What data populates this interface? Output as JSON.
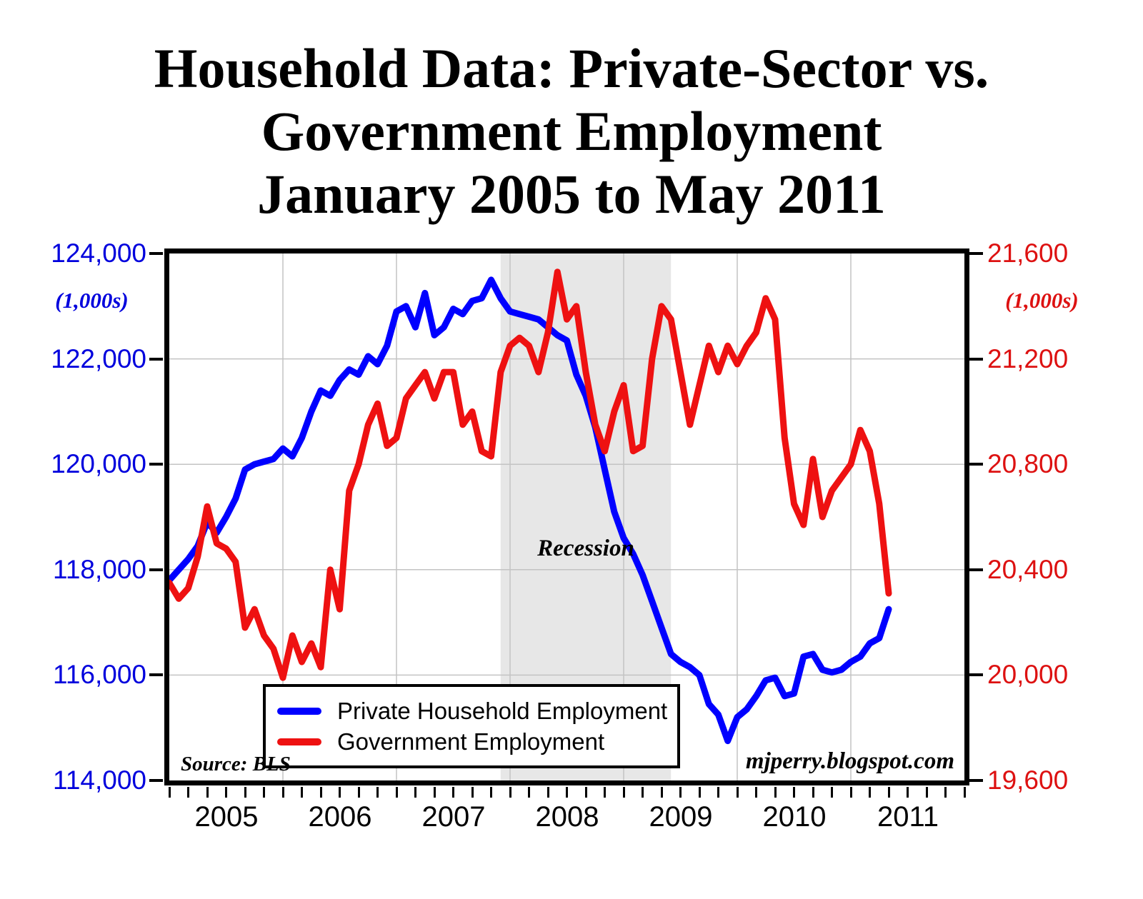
{
  "chart_data": {
    "type": "line",
    "title_lines": [
      "Household Data: Private-Sector vs.",
      "Government Employment",
      "January 2005 to May 2011"
    ],
    "x_unit": "month",
    "x_start": "2005-01",
    "x_end": "2011-05",
    "x_tick_labels": [
      "2005",
      "2006",
      "2007",
      "2008",
      "2009",
      "2010",
      "2011"
    ],
    "left_axis": {
      "unit_label": "(1,000s)",
      "tick_labels": [
        "124,000",
        "122,000",
        "120,000",
        "118,000",
        "116,000",
        "114,000"
      ],
      "ylim": [
        114000,
        124000
      ],
      "color": "#0000dd"
    },
    "right_axis": {
      "unit_label": "(1,000s)",
      "tick_labels": [
        "21,600",
        "21,200",
        "20,800",
        "20,400",
        "20,000",
        "19,600"
      ],
      "ylim": [
        19600,
        21600
      ],
      "color": "#dd1111"
    },
    "grid": true,
    "legend_position": "inside-bottom-left",
    "colors": {
      "recession_fill": "#e7e7e7",
      "grid": "#c3c3c3",
      "frame": "#000000"
    },
    "recession_band": {
      "label": "Recession",
      "start_month_index": 35,
      "end_month_index": 53
    },
    "annotations": {
      "source": "Source: BLS",
      "watermark": "mjperry.blogspot.com"
    },
    "series": [
      {
        "name": "Private Household Employment",
        "axis": "left",
        "color": "#0000ff",
        "values": [
          117800,
          118000,
          118200,
          118450,
          118900,
          118700,
          119000,
          119350,
          119900,
          120000,
          120050,
          120100,
          120300,
          120150,
          120500,
          121000,
          121400,
          121300,
          121600,
          121800,
          121700,
          122050,
          121900,
          122250,
          122900,
          123000,
          122600,
          123250,
          122450,
          122600,
          122950,
          122850,
          123100,
          123150,
          123500,
          123150,
          122900,
          122850,
          122800,
          122750,
          122600,
          122450,
          122350,
          121700,
          121300,
          120700,
          119900,
          119100,
          118600,
          118300,
          117900,
          117400,
          116900,
          116400,
          116250,
          116150,
          116000,
          115450,
          115250,
          114750,
          115200,
          115350,
          115600,
          115900,
          115950,
          115600,
          115650,
          116350,
          116400,
          116100,
          116050,
          116100,
          116250,
          116350,
          116600,
          116700,
          117250
        ]
      },
      {
        "name": "Government Employment",
        "axis": "right",
        "color": "#ee1111",
        "values": [
          20350,
          20290,
          20330,
          20450,
          20640,
          20500,
          20480,
          20430,
          20180,
          20250,
          20150,
          20100,
          19990,
          20150,
          20050,
          20120,
          20030,
          20400,
          20250,
          20700,
          20800,
          20950,
          21030,
          20870,
          20900,
          21050,
          21100,
          21150,
          21050,
          21150,
          21150,
          20950,
          21000,
          20850,
          20830,
          21150,
          21250,
          21280,
          21250,
          21150,
          21300,
          21530,
          21350,
          21400,
          21150,
          20950,
          20850,
          21000,
          21100,
          20850,
          20870,
          21200,
          21400,
          21350,
          21150,
          20950,
          21100,
          21250,
          21150,
          21250,
          21180,
          21250,
          21300,
          21430,
          21350,
          20900,
          20650,
          20570,
          20820,
          20600,
          20700,
          20750,
          20800,
          20930,
          20850,
          20650,
          20310
        ]
      }
    ]
  }
}
